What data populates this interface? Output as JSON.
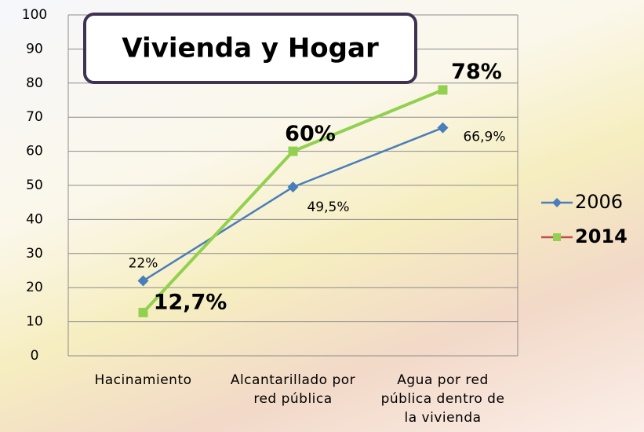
{
  "chart_data": {
    "type": "line",
    "title": "Vivienda y Hogar",
    "categories": [
      "Hacinamiento",
      "Alcantarillado por red pública",
      "Agua por red pública dentro de la vivienda"
    ],
    "series": [
      {
        "name": "2006",
        "color": "#4a7ebb",
        "values": [
          22,
          49.5,
          66.9
        ],
        "value_labels": [
          "22%",
          "49,5%",
          "66,9%"
        ]
      },
      {
        "name": "2014",
        "color": "#92d050",
        "values": [
          12.7,
          60,
          78
        ],
        "value_labels": [
          "12,7%",
          "60%",
          "78%"
        ]
      }
    ],
    "ylim": [
      0,
      100
    ],
    "yticks": [
      0,
      10,
      20,
      30,
      40,
      50,
      60,
      70,
      80,
      90,
      100
    ],
    "grid": true,
    "legend": "right"
  }
}
